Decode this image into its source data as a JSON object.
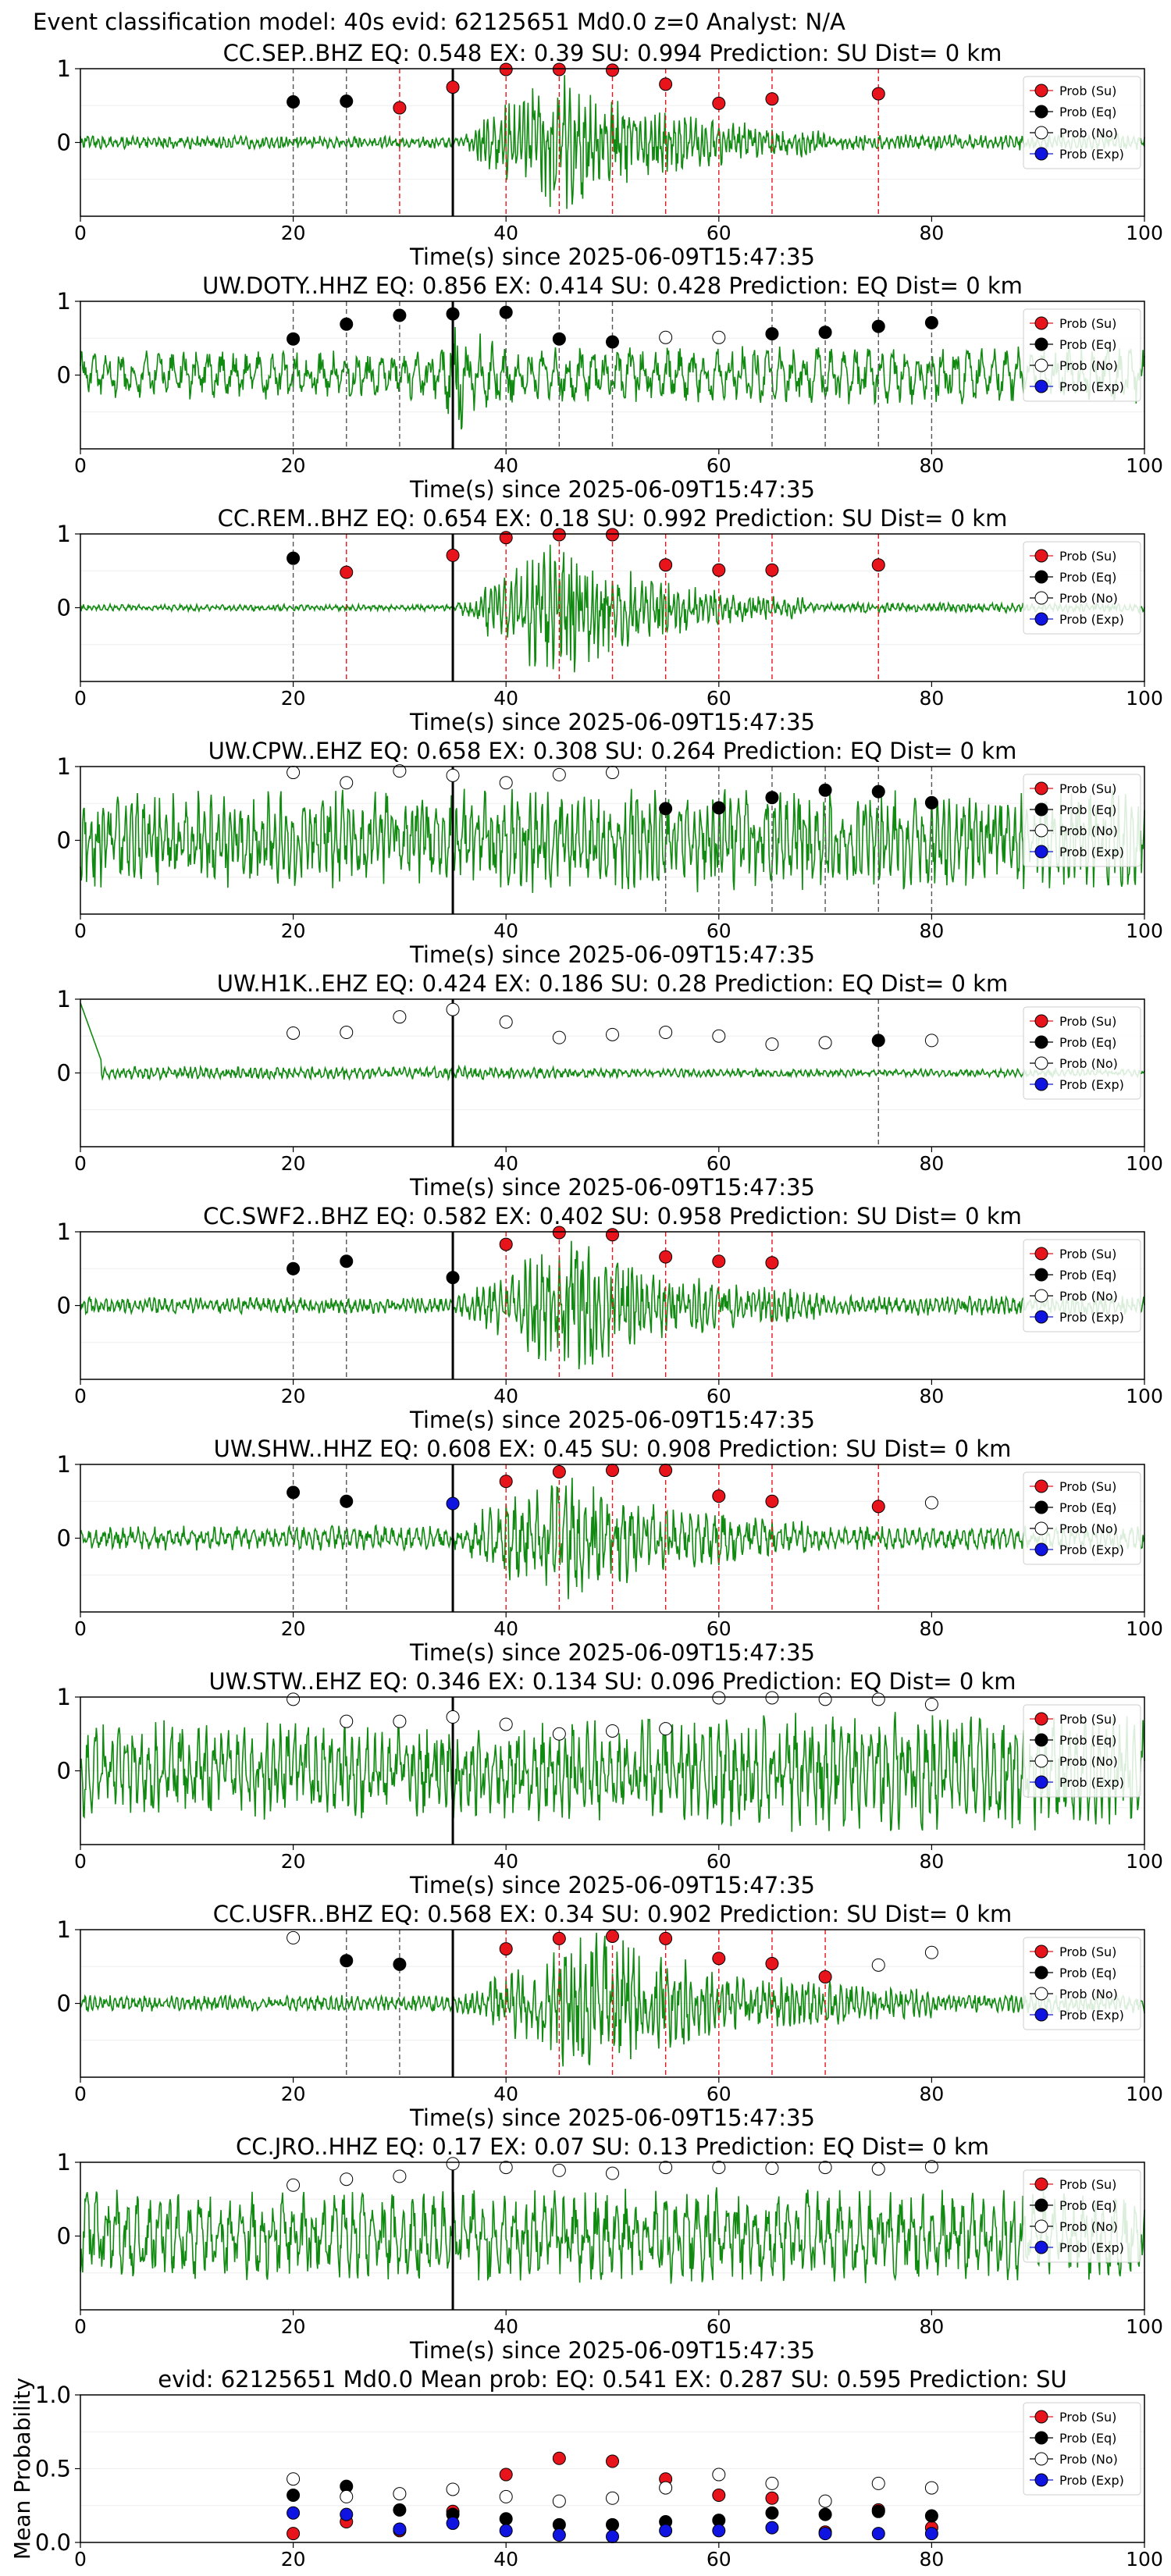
{
  "figure_title": "Event classification model: 40s evid: 62125651 Md0.0 z=0 Analyst: N/A",
  "xlabel": "Time(s) since 2025-06-09T15:47:35",
  "legend_labels": [
    "Prob (Su)",
    "Prob (Eq)",
    "Prob (No)",
    "Prob (Exp)"
  ],
  "colors": {
    "su": "#e8141c",
    "eq": "#000000",
    "no": "#ffffff",
    "exp": "#1014e0",
    "wave": "#118a11",
    "dash_su": "#e8141c",
    "dash_eq": "#555555"
  },
  "chart_data": [
    {
      "type": "line",
      "station": "CC.SEP..BHZ",
      "title": "CC.SEP..BHZ   EQ: 0.548  EX: 0.39  SU: 0.994   Prediction: SU    Dist= 0 km",
      "xlim": [
        0,
        100
      ],
      "ylim": [
        -1,
        1
      ],
      "yticks": [
        0,
        1
      ],
      "xticks": [
        0,
        20,
        40,
        60,
        80,
        100
      ],
      "pick": 35,
      "wave": {
        "pre": 0.08,
        "peak": 0.95,
        "start": 36,
        "peak_at": 44,
        "end": 70,
        "after": 0.1,
        "roughness": 0.6
      },
      "points": [
        {
          "t": 20,
          "c": "eq",
          "v": 0.55
        },
        {
          "t": 25,
          "c": "eq",
          "v": 0.56
        },
        {
          "t": 30,
          "c": "su",
          "v": 0.47
        },
        {
          "t": 35,
          "c": "su",
          "v": 0.75
        },
        {
          "t": 40,
          "c": "su",
          "v": 0.99
        },
        {
          "t": 45,
          "c": "su",
          "v": 0.99
        },
        {
          "t": 50,
          "c": "su",
          "v": 0.98
        },
        {
          "t": 55,
          "c": "su",
          "v": 0.79
        },
        {
          "t": 60,
          "c": "su",
          "v": 0.53
        },
        {
          "t": 65,
          "c": "su",
          "v": 0.59
        },
        {
          "t": 75,
          "c": "su",
          "v": 0.66
        }
      ]
    },
    {
      "type": "line",
      "station": "UW.DOTY..HHZ",
      "title": "UW.DOTY..HHZ   EQ: 0.856  EX: 0.414  SU: 0.428   Prediction: EQ    Dist= 0 km",
      "xlim": [
        0,
        100
      ],
      "ylim": [
        -1,
        1
      ],
      "yticks": [
        0,
        1
      ],
      "xticks": [
        0,
        20,
        40,
        60,
        80,
        100
      ],
      "pick": 35,
      "wave": {
        "pre": 0.3,
        "peak": 0.9,
        "start": 34,
        "peak_at": 35,
        "end": 40,
        "after": 0.35,
        "roughness": 0.12
      },
      "points": [
        {
          "t": 20,
          "c": "eq",
          "v": 0.49
        },
        {
          "t": 25,
          "c": "eq",
          "v": 0.69
        },
        {
          "t": 30,
          "c": "eq",
          "v": 0.81
        },
        {
          "t": 35,
          "c": "eq",
          "v": 0.83
        },
        {
          "t": 40,
          "c": "eq",
          "v": 0.85
        },
        {
          "t": 45,
          "c": "eq",
          "v": 0.49
        },
        {
          "t": 50,
          "c": "eq",
          "v": 0.45
        },
        {
          "t": 55,
          "c": "no",
          "v": 0.51
        },
        {
          "t": 60,
          "c": "no",
          "v": 0.51
        },
        {
          "t": 65,
          "c": "eq",
          "v": 0.56
        },
        {
          "t": 70,
          "c": "eq",
          "v": 0.58
        },
        {
          "t": 75,
          "c": "eq",
          "v": 0.66
        },
        {
          "t": 80,
          "c": "eq",
          "v": 0.71
        }
      ]
    },
    {
      "type": "line",
      "station": "CC.REM..BHZ",
      "title": "CC.REM..BHZ   EQ: 0.654  EX: 0.18  SU: 0.992   Prediction: SU    Dist= 0 km",
      "xlim": [
        0,
        100
      ],
      "ylim": [
        -1,
        1
      ],
      "yticks": [
        0,
        1
      ],
      "xticks": [
        0,
        20,
        40,
        60,
        80,
        100
      ],
      "pick": 35,
      "wave": {
        "pre": 0.04,
        "peak": 0.95,
        "start": 35,
        "peak_at": 45,
        "end": 68,
        "after": 0.06,
        "roughness": 0.6
      },
      "points": [
        {
          "t": 20,
          "c": "eq",
          "v": 0.67
        },
        {
          "t": 25,
          "c": "su",
          "v": 0.48
        },
        {
          "t": 35,
          "c": "su",
          "v": 0.71
        },
        {
          "t": 40,
          "c": "su",
          "v": 0.95
        },
        {
          "t": 45,
          "c": "su",
          "v": 0.99
        },
        {
          "t": 50,
          "c": "su",
          "v": 0.99
        },
        {
          "t": 55,
          "c": "su",
          "v": 0.58
        },
        {
          "t": 60,
          "c": "su",
          "v": 0.51
        },
        {
          "t": 65,
          "c": "su",
          "v": 0.51
        },
        {
          "t": 75,
          "c": "su",
          "v": 0.58
        }
      ]
    },
    {
      "type": "line",
      "station": "UW.CPW..EHZ",
      "title": "UW.CPW..EHZ   EQ: 0.658  EX: 0.308  SU: 0.264   Prediction: EQ    Dist= 0 km",
      "xlim": [
        0,
        100
      ],
      "ylim": [
        -1,
        1
      ],
      "yticks": [
        0,
        1
      ],
      "xticks": [
        0,
        20,
        40,
        60,
        80,
        100
      ],
      "pick": 35,
      "wave": {
        "pre": 0.6,
        "peak": 0.65,
        "start": 35,
        "peak_at": 40,
        "end": 70,
        "after": 0.6,
        "roughness": 0.45
      },
      "points": [
        {
          "t": 20,
          "c": "no",
          "v": 0.92
        },
        {
          "t": 25,
          "c": "no",
          "v": 0.78
        },
        {
          "t": 30,
          "c": "no",
          "v": 0.94
        },
        {
          "t": 35,
          "c": "no",
          "v": 0.88
        },
        {
          "t": 40,
          "c": "no",
          "v": 0.78
        },
        {
          "t": 45,
          "c": "no",
          "v": 0.89
        },
        {
          "t": 50,
          "c": "no",
          "v": 0.92
        },
        {
          "t": 55,
          "c": "eq",
          "v": 0.43
        },
        {
          "t": 60,
          "c": "eq",
          "v": 0.44
        },
        {
          "t": 65,
          "c": "eq",
          "v": 0.58
        },
        {
          "t": 70,
          "c": "eq",
          "v": 0.68
        },
        {
          "t": 75,
          "c": "eq",
          "v": 0.66
        },
        {
          "t": 80,
          "c": "eq",
          "v": 0.51
        }
      ]
    },
    {
      "type": "line",
      "station": "UW.H1K..EHZ",
      "title": "UW.H1K..EHZ   EQ: 0.424  EX: 0.186  SU: 0.28   Prediction: EQ    Dist= 0 km",
      "xlim": [
        0,
        100
      ],
      "ylim": [
        -1,
        1
      ],
      "yticks": [
        0,
        1
      ],
      "xticks": [
        0,
        20,
        40,
        60,
        80,
        100
      ],
      "pick": 35,
      "wave": {
        "pre": 0.08,
        "peak": 0.08,
        "start": 35,
        "peak_at": 40,
        "end": 60,
        "after": 0.05,
        "roughness": 0.5,
        "spike": true
      },
      "points": [
        {
          "t": 20,
          "c": "no",
          "v": 0.54
        },
        {
          "t": 25,
          "c": "no",
          "v": 0.55
        },
        {
          "t": 30,
          "c": "no",
          "v": 0.76
        },
        {
          "t": 35,
          "c": "no",
          "v": 0.86
        },
        {
          "t": 40,
          "c": "no",
          "v": 0.69
        },
        {
          "t": 45,
          "c": "no",
          "v": 0.48
        },
        {
          "t": 50,
          "c": "no",
          "v": 0.52
        },
        {
          "t": 55,
          "c": "no",
          "v": 0.55
        },
        {
          "t": 60,
          "c": "no",
          "v": 0.5
        },
        {
          "t": 65,
          "c": "no",
          "v": 0.39
        },
        {
          "t": 70,
          "c": "no",
          "v": 0.41
        },
        {
          "t": 75,
          "c": "eq",
          "v": 0.44
        },
        {
          "t": 80,
          "c": "no",
          "v": 0.44
        }
      ]
    },
    {
      "type": "line",
      "station": "CC.SWF2..BHZ",
      "title": "CC.SWF2..BHZ   EQ: 0.582  EX: 0.402  SU: 0.958   Prediction: SU    Dist= 0 km",
      "xlim": [
        0,
        100
      ],
      "ylim": [
        -1,
        1
      ],
      "yticks": [
        0,
        1
      ],
      "xticks": [
        0,
        20,
        40,
        60,
        80,
        100
      ],
      "pick": 35,
      "wave": {
        "pre": 0.1,
        "peak": 0.9,
        "start": 35,
        "peak_at": 46,
        "end": 70,
        "after": 0.12,
        "roughness": 0.55
      },
      "points": [
        {
          "t": 20,
          "c": "eq",
          "v": 0.5
        },
        {
          "t": 25,
          "c": "eq",
          "v": 0.6
        },
        {
          "t": 35,
          "c": "eq",
          "v": 0.38
        },
        {
          "t": 40,
          "c": "su",
          "v": 0.83
        },
        {
          "t": 45,
          "c": "su",
          "v": 0.99
        },
        {
          "t": 50,
          "c": "su",
          "v": 0.96
        },
        {
          "t": 55,
          "c": "su",
          "v": 0.66
        },
        {
          "t": 60,
          "c": "su",
          "v": 0.6
        },
        {
          "t": 65,
          "c": "su",
          "v": 0.58
        }
      ]
    },
    {
      "type": "line",
      "station": "UW.SHW..HHZ",
      "title": "UW.SHW..HHZ   EQ: 0.608  EX: 0.45  SU: 0.908   Prediction: SU    Dist= 0 km",
      "xlim": [
        0,
        100
      ],
      "ylim": [
        -1,
        1
      ],
      "yticks": [
        0,
        1
      ],
      "xticks": [
        0,
        20,
        40,
        60,
        80,
        100
      ],
      "pick": 35,
      "wave": {
        "pre": 0.15,
        "peak": 0.9,
        "start": 35,
        "peak_at": 45,
        "end": 70,
        "after": 0.15,
        "roughness": 0.35
      },
      "points": [
        {
          "t": 20,
          "c": "eq",
          "v": 0.62
        },
        {
          "t": 25,
          "c": "eq",
          "v": 0.5
        },
        {
          "t": 35,
          "c": "exp",
          "v": 0.47
        },
        {
          "t": 40,
          "c": "su",
          "v": 0.77
        },
        {
          "t": 45,
          "c": "su",
          "v": 0.9
        },
        {
          "t": 50,
          "c": "su",
          "v": 0.92
        },
        {
          "t": 55,
          "c": "su",
          "v": 0.92
        },
        {
          "t": 60,
          "c": "su",
          "v": 0.57
        },
        {
          "t": 65,
          "c": "su",
          "v": 0.5
        },
        {
          "t": 75,
          "c": "su",
          "v": 0.43
        },
        {
          "t": 80,
          "c": "no",
          "v": 0.48
        }
      ]
    },
    {
      "type": "line",
      "station": "UW.STW..EHZ",
      "title": "UW.STW..EHZ   EQ: 0.346  EX: 0.134  SU: 0.096   Prediction: EQ    Dist= 0 km",
      "xlim": [
        0,
        100
      ],
      "ylim": [
        -1,
        1
      ],
      "yticks": [
        0,
        1
      ],
      "xticks": [
        0,
        20,
        40,
        60,
        80,
        100
      ],
      "pick": 35,
      "wave": {
        "pre": 0.6,
        "peak": 0.75,
        "start": 40,
        "peak_at": 70,
        "end": 100,
        "after": 0.7,
        "roughness": 0.35
      },
      "points": [
        {
          "t": 20,
          "c": "no",
          "v": 0.97
        },
        {
          "t": 25,
          "c": "no",
          "v": 0.67
        },
        {
          "t": 30,
          "c": "no",
          "v": 0.67
        },
        {
          "t": 35,
          "c": "no",
          "v": 0.73
        },
        {
          "t": 40,
          "c": "no",
          "v": 0.63
        },
        {
          "t": 45,
          "c": "no",
          "v": 0.5
        },
        {
          "t": 50,
          "c": "no",
          "v": 0.54
        },
        {
          "t": 55,
          "c": "no",
          "v": 0.57
        },
        {
          "t": 60,
          "c": "no",
          "v": 0.99
        },
        {
          "t": 65,
          "c": "no",
          "v": 0.99
        },
        {
          "t": 70,
          "c": "no",
          "v": 0.97
        },
        {
          "t": 75,
          "c": "no",
          "v": 0.97
        },
        {
          "t": 80,
          "c": "no",
          "v": 0.9
        }
      ]
    },
    {
      "type": "line",
      "station": "CC.USFR..BHZ",
      "title": "CC.USFR..BHZ   EQ: 0.568  EX: 0.34  SU: 0.902   Prediction: SU    Dist= 0 km",
      "xlim": [
        0,
        100
      ],
      "ylim": [
        -1,
        1
      ],
      "yticks": [
        0,
        1
      ],
      "xticks": [
        0,
        20,
        40,
        60,
        80,
        100
      ],
      "pick": 35,
      "wave": {
        "pre": 0.1,
        "peak": 0.95,
        "start": 35,
        "peak_at": 48,
        "end": 80,
        "after": 0.12,
        "roughness": 0.55
      },
      "points": [
        {
          "t": 20,
          "c": "no",
          "v": 0.89
        },
        {
          "t": 25,
          "c": "eq",
          "v": 0.58
        },
        {
          "t": 30,
          "c": "eq",
          "v": 0.53
        },
        {
          "t": 40,
          "c": "su",
          "v": 0.74
        },
        {
          "t": 45,
          "c": "su",
          "v": 0.88
        },
        {
          "t": 50,
          "c": "su",
          "v": 0.91
        },
        {
          "t": 55,
          "c": "su",
          "v": 0.88
        },
        {
          "t": 60,
          "c": "su",
          "v": 0.61
        },
        {
          "t": 65,
          "c": "su",
          "v": 0.54
        },
        {
          "t": 70,
          "c": "su",
          "v": 0.36
        },
        {
          "t": 75,
          "c": "no",
          "v": 0.52
        },
        {
          "t": 80,
          "c": "no",
          "v": 0.69
        }
      ]
    },
    {
      "type": "line",
      "station": "CC.JRO..HHZ",
      "title": "CC.JRO..HHZ   EQ: 0.17  EX: 0.07  SU: 0.13   Prediction: EQ    Dist= 0 km",
      "xlim": [
        0,
        100
      ],
      "ylim": [
        -1,
        1
      ],
      "yticks": [
        0,
        1
      ],
      "xticks": [
        0,
        20,
        40,
        60,
        80,
        100
      ],
      "pick": 35,
      "wave": {
        "pre": 0.55,
        "peak": 0.6,
        "start": 35,
        "peak_at": 50,
        "end": 100,
        "after": 0.55,
        "roughness": 0.2
      },
      "points": [
        {
          "t": 20,
          "c": "no",
          "v": 0.69
        },
        {
          "t": 25,
          "c": "no",
          "v": 0.77
        },
        {
          "t": 30,
          "c": "no",
          "v": 0.81
        },
        {
          "t": 35,
          "c": "no",
          "v": 0.98
        },
        {
          "t": 40,
          "c": "no",
          "v": 0.93
        },
        {
          "t": 45,
          "c": "no",
          "v": 0.89
        },
        {
          "t": 50,
          "c": "no",
          "v": 0.85
        },
        {
          "t": 55,
          "c": "no",
          "v": 0.93
        },
        {
          "t": 60,
          "c": "no",
          "v": 0.93
        },
        {
          "t": 65,
          "c": "no",
          "v": 0.92
        },
        {
          "t": 70,
          "c": "no",
          "v": 0.93
        },
        {
          "t": 75,
          "c": "no",
          "v": 0.91
        },
        {
          "t": 80,
          "c": "no",
          "v": 0.94
        }
      ]
    },
    {
      "type": "scatter",
      "title": "evid: 62125651  Md0.0   Mean prob:   EQ: 0.541  EX: 0.287  SU: 0.595   Prediction: SU",
      "ylabel": "Mean Probability",
      "xlim": [
        0,
        100
      ],
      "ylim": [
        0,
        1
      ],
      "yticks": [
        0.0,
        0.5,
        1.0
      ],
      "xticks": [
        0,
        20,
        40,
        60,
        80,
        100
      ],
      "series": [
        {
          "name": "Prob (Su)",
          "c": "su",
          "x": [
            20,
            25,
            30,
            35,
            40,
            45,
            50,
            55,
            60,
            65,
            70,
            75,
            80
          ],
          "values": [
            0.06,
            0.14,
            0.08,
            0.21,
            0.46,
            0.57,
            0.55,
            0.43,
            0.32,
            0.3,
            0.07,
            0.22,
            0.1
          ]
        },
        {
          "name": "Prob (Eq)",
          "c": "eq",
          "x": [
            20,
            25,
            30,
            35,
            40,
            45,
            50,
            55,
            60,
            65,
            70,
            75,
            80
          ],
          "values": [
            0.32,
            0.38,
            0.22,
            0.19,
            0.16,
            0.12,
            0.12,
            0.14,
            0.15,
            0.2,
            0.19,
            0.21,
            0.18
          ]
        },
        {
          "name": "Prob (No)",
          "c": "no",
          "x": [
            20,
            25,
            30,
            35,
            40,
            45,
            50,
            55,
            60,
            65,
            70,
            75,
            80
          ],
          "values": [
            0.43,
            0.31,
            0.33,
            0.36,
            0.31,
            0.28,
            0.3,
            0.37,
            0.46,
            0.4,
            0.28,
            0.4,
            0.37
          ]
        },
        {
          "name": "Prob (Exp)",
          "c": "exp",
          "x": [
            20,
            25,
            30,
            35,
            40,
            45,
            50,
            55,
            60,
            65,
            70,
            75,
            80
          ],
          "values": [
            0.2,
            0.19,
            0.09,
            0.13,
            0.08,
            0.05,
            0.04,
            0.08,
            0.08,
            0.1,
            0.06,
            0.06,
            0.06
          ]
        }
      ]
    }
  ]
}
